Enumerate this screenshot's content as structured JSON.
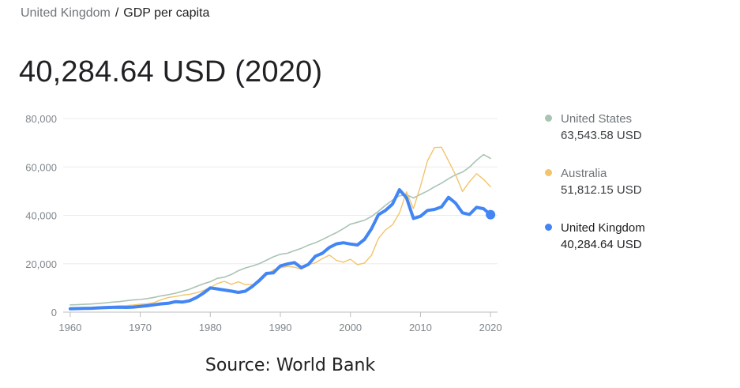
{
  "breadcrumb": {
    "country": "United Kingdom",
    "separator": "/",
    "metric": "GDP per capita"
  },
  "headline": "40,284.64 USD (2020)",
  "source": "Source: World Bank",
  "legend": [
    {
      "name": "United States",
      "value": "63,543.58 USD",
      "color": "#a9c4b3"
    },
    {
      "name": "Australia",
      "value": "51,812.15 USD",
      "color": "#f2c46c"
    },
    {
      "name": "United Kingdom",
      "value": "40,284.64 USD",
      "color": "#4285f4"
    }
  ],
  "chart_data": {
    "type": "line",
    "title": "",
    "xlabel": "",
    "ylabel": "",
    "x": [
      1960,
      1961,
      1962,
      1963,
      1964,
      1965,
      1966,
      1967,
      1968,
      1969,
      1970,
      1971,
      1972,
      1973,
      1974,
      1975,
      1976,
      1977,
      1978,
      1979,
      1980,
      1981,
      1982,
      1983,
      1984,
      1985,
      1986,
      1987,
      1988,
      1989,
      1990,
      1991,
      1992,
      1993,
      1994,
      1995,
      1996,
      1997,
      1998,
      1999,
      2000,
      2001,
      2002,
      2003,
      2004,
      2005,
      2006,
      2007,
      2008,
      2009,
      2010,
      2011,
      2012,
      2013,
      2014,
      2015,
      2016,
      2017,
      2018,
      2019,
      2020
    ],
    "xticks": [
      1960,
      1970,
      1980,
      1990,
      2000,
      2010,
      2020
    ],
    "yticks": [
      0,
      20000,
      40000,
      60000,
      80000
    ],
    "ytick_labels": [
      "0",
      "20,000",
      "40,000",
      "60,000",
      "80,000"
    ],
    "ylim": [
      0,
      80000
    ],
    "xlim": [
      1959,
      2021
    ],
    "grid": true,
    "legend_position": "right",
    "series": [
      {
        "name": "United States",
        "color": "#a9c4b3",
        "width": 1.6,
        "values": [
          3007,
          3067,
          3244,
          3375,
          3574,
          3828,
          4146,
          4336,
          4696,
          5032,
          5234,
          5609,
          6094,
          6726,
          7226,
          7801,
          8592,
          9453,
          10565,
          11674,
          12575,
          13976,
          14434,
          15544,
          17121,
          18237,
          19071,
          20039,
          21417,
          22857,
          23889,
          24342,
          25419,
          26387,
          27695,
          28691,
          29968,
          31459,
          32854,
          34515,
          36330,
          37134,
          37998,
          39490,
          41725,
          44123,
          46302,
          48050,
          48570,
          47195,
          48651,
          50066,
          51784,
          53291,
          55124,
          56763,
          57867,
          59915,
          62805,
          65095,
          63543
        ]
      },
      {
        "name": "Australia",
        "color": "#f2c46c",
        "width": 1.4,
        "values": [
          1807,
          1875,
          1851,
          1964,
          2128,
          2278,
          2340,
          2576,
          2720,
          2986,
          3300,
          3492,
          3989,
          5133,
          6083,
          6441,
          7010,
          7313,
          7962,
          8878,
          10194,
          11825,
          12733,
          11497,
          12543,
          11409,
          11361,
          12407,
          15207,
          17421,
          18249,
          18859,
          18623,
          17693,
          19604,
          20409,
          22131,
          23608,
          21401,
          20630,
          21873,
          19637,
          20275,
          23465,
          30431,
          34005,
          36045,
          40992,
          49664,
          42773,
          52022,
          62518,
          68012,
          68151,
          62511,
          56755,
          49872,
          53936,
          57207,
          54875,
          51812
        ]
      },
      {
        "name": "United Kingdom",
        "color": "#4285f4",
        "width": 4,
        "values": [
          1398,
          1472,
          1526,
          1613,
          1748,
          1873,
          1987,
          2059,
          1952,
          2100,
          2348,
          2650,
          3030,
          3427,
          3666,
          4300,
          4138,
          4681,
          5977,
          7804,
          10032,
          9599,
          9146,
          8692,
          8179,
          8652,
          10611,
          13119,
          15988,
          16239,
          19095,
          19901,
          20487,
          18389,
          19709,
          23123,
          24332,
          26734,
          28214,
          28669,
          28150,
          27744,
          30057,
          34420,
          40290,
          42030,
          44599,
          50567,
          47287,
          38713,
          39599,
          42038,
          42463,
          43449,
          47440,
          45071,
          41049,
          40361,
          43306,
          42747,
          40284
        ]
      }
    ],
    "end_marker": {
      "series": "United Kingdom",
      "x": 2020,
      "y": 40284.64
    }
  }
}
